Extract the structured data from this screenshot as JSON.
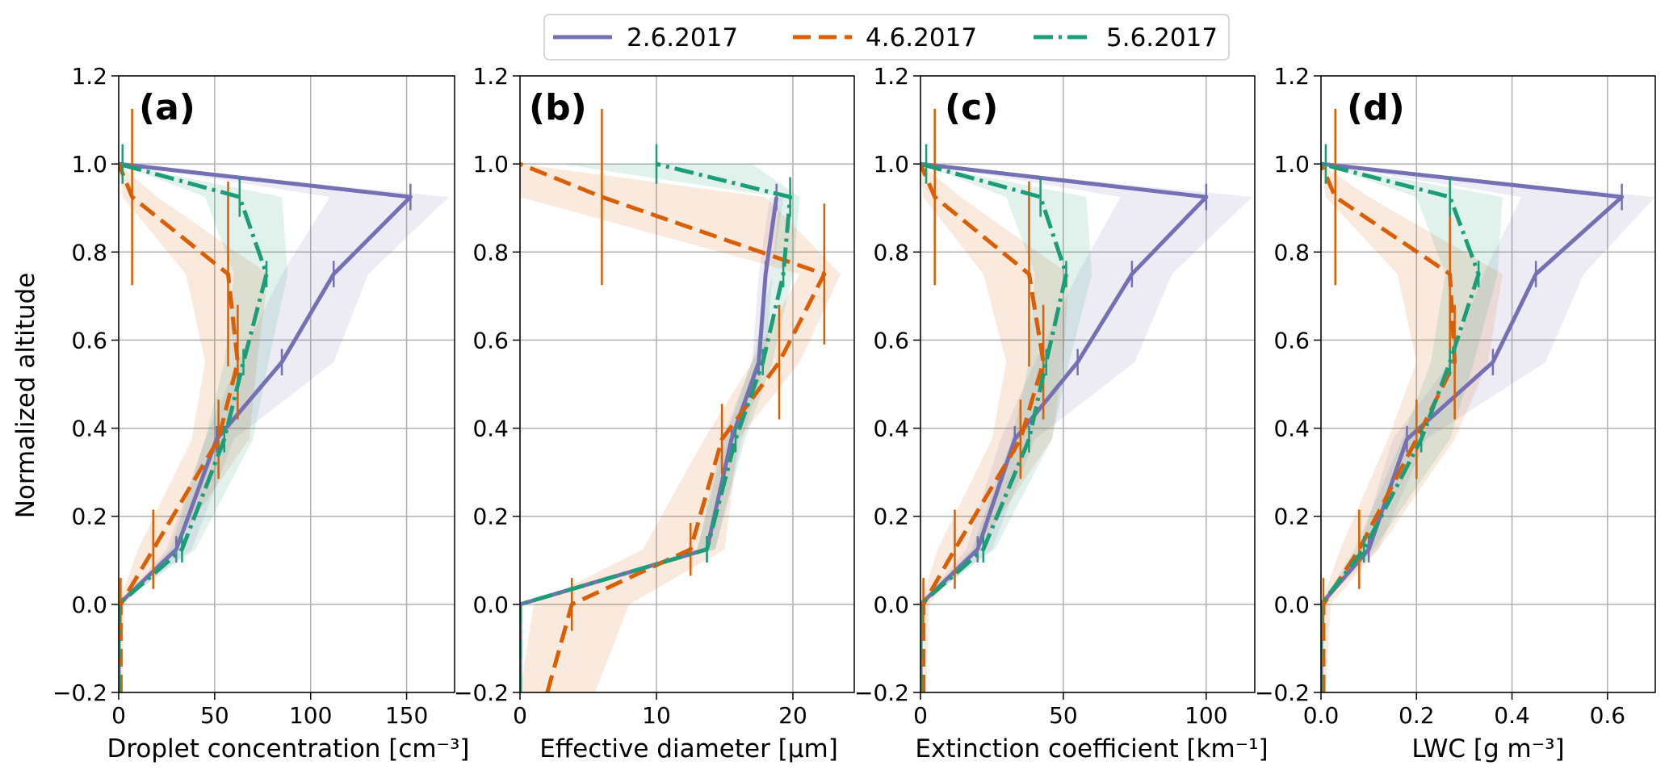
{
  "figure": {
    "ylabel": "Normalized altitude"
  },
  "legend": {
    "placement": "top-center",
    "items": [
      {
        "key": "s1",
        "label": "2.6.2017"
      },
      {
        "key": "s2",
        "label": "4.6.2017"
      },
      {
        "key": "s3",
        "label": "5.6.2017"
      }
    ]
  },
  "styles": {
    "s1": {
      "color": "#7570b3",
      "dash": ""
    },
    "s2": {
      "color": "#d95f02",
      "dash": "22,10"
    },
    "s3": {
      "color": "#1b9e77",
      "dash": "24,7,4,7"
    }
  },
  "chart_data": [
    {
      "type": "line",
      "panel": "(a)",
      "xlabel": "Droplet concentration [cm⁻³]",
      "xlim": [
        0,
        175
      ],
      "ylim": [
        -0.2,
        1.2
      ],
      "xticks": [
        0,
        50,
        100,
        150
      ],
      "yticks": [
        -0.2,
        0.0,
        0.2,
        0.4,
        0.6,
        0.8,
        1.0,
        1.2
      ],
      "grid": true,
      "series": [
        {
          "key": "s1",
          "points": [
            [
              0,
              -0.2
            ],
            [
              0,
              0.0
            ],
            [
              30,
              0.125
            ],
            [
              51,
              0.375
            ],
            [
              85,
              0.55
            ],
            [
              112,
              0.75
            ],
            [
              152,
              0.925
            ],
            [
              0,
              1.0
            ]
          ],
          "band_low": [
            0,
            0,
            25,
            45,
            62,
            85,
            110,
            0
          ],
          "band_high": [
            0,
            0,
            38,
            60,
            112,
            130,
            172,
            0
          ],
          "err": [
            [
              30,
              0.125,
              0.03
            ],
            [
              51,
              0.375,
              0.03
            ],
            [
              85,
              0.55,
              0.03
            ],
            [
              112,
              0.75,
              0.03
            ],
            [
              152,
              0.925,
              0.03
            ]
          ]
        },
        {
          "key": "s2",
          "points": [
            [
              1,
              -0.2
            ],
            [
              1,
              0.0
            ],
            [
              18,
              0.125
            ],
            [
              52,
              0.375
            ],
            [
              62,
              0.55
            ],
            [
              57,
              0.75
            ],
            [
              7,
              0.925
            ],
            [
              0,
              1.0
            ]
          ],
          "band_low": [
            0,
            0,
            10,
            38,
            45,
            35,
            2,
            0
          ],
          "band_high": [
            2,
            3,
            28,
            68,
            72,
            78,
            20,
            0
          ],
          "err": [
            [
              1,
              0.0,
              0.06
            ],
            [
              18,
              0.125,
              0.09
            ],
            [
              52,
              0.375,
              0.09
            ],
            [
              62,
              0.55,
              0.13
            ],
            [
              57,
              0.75,
              0.21
            ],
            [
              7,
              0.925,
              0.2
            ]
          ]
        },
        {
          "key": "s3",
          "points": [
            [
              0,
              -0.2
            ],
            [
              0,
              0.0
            ],
            [
              33,
              0.125
            ],
            [
              55,
              0.375
            ],
            [
              65,
              0.55
            ],
            [
              77,
              0.75
            ],
            [
              63,
              0.925
            ],
            [
              0,
              1.0
            ]
          ],
          "band_low": [
            0,
            0,
            27,
            45,
            55,
            60,
            45,
            0
          ],
          "band_high": [
            0,
            0,
            40,
            70,
            78,
            88,
            85,
            0
          ],
          "err": [
            [
              33,
              0.125,
              0.03
            ],
            [
              55,
              0.375,
              0.03
            ],
            [
              65,
              0.55,
              0.03
            ],
            [
              77,
              0.75,
              0.03
            ],
            [
              63,
              0.925,
              0.045
            ],
            [
              2,
              1.0,
              0.045
            ]
          ]
        }
      ]
    },
    {
      "type": "line",
      "panel": "(b)",
      "xlabel": "Effective diameter [μm]",
      "xlim": [
        0,
        24.5
      ],
      "ylim": [
        -0.2,
        1.2
      ],
      "xticks": [
        0,
        10,
        20
      ],
      "yticks": [
        -0.2,
        0.0,
        0.2,
        0.4,
        0.6,
        0.8,
        1.0,
        1.2
      ],
      "grid": true,
      "series": [
        {
          "key": "s1",
          "points": [
            [
              0,
              -0.2
            ],
            [
              0,
              0.0
            ],
            [
              13.7,
              0.125
            ],
            [
              15.5,
              0.375
            ],
            [
              17.5,
              0.55
            ],
            [
              18,
              0.75
            ],
            [
              18.8,
              0.925
            ]
          ],
          "band_low": [
            0,
            0,
            13,
            14.8,
            17,
            17.5,
            18.3
          ],
          "band_high": [
            0,
            0,
            14.3,
            16.3,
            18,
            18.5,
            19.3
          ],
          "err": [
            [
              13.7,
              0.125,
              0.03
            ],
            [
              15.5,
              0.375,
              0.03
            ],
            [
              17.5,
              0.55,
              0.03
            ],
            [
              18,
              0.75,
              0.03
            ],
            [
              18.8,
              0.925,
              0.03
            ]
          ]
        },
        {
          "key": "s2",
          "points": [
            [
              2,
              -0.2
            ],
            [
              3.8,
              0.0
            ],
            [
              12.5,
              0.125
            ],
            [
              14.8,
              0.375
            ],
            [
              19,
              0.55
            ],
            [
              22.3,
              0.75
            ],
            [
              6,
              0.925
            ],
            [
              0,
              1.0
            ]
          ],
          "band_low": [
            0,
            1,
            9,
            13.5,
            17,
            20.5,
            0,
            0
          ],
          "band_high": [
            5.5,
            8,
            15,
            16,
            20.5,
            23.5,
            18,
            0
          ],
          "err": [
            [
              3.8,
              0.0,
              0.06
            ],
            [
              12.5,
              0.125,
              0.06
            ],
            [
              14.8,
              0.375,
              0.08
            ],
            [
              19,
              0.55,
              0.13
            ],
            [
              22.3,
              0.75,
              0.16
            ],
            [
              6,
              0.925,
              0.2
            ]
          ]
        },
        {
          "key": "s3",
          "points": [
            [
              0,
              -0.2
            ],
            [
              0,
              0.0
            ],
            [
              13.7,
              0.125
            ],
            [
              15.8,
              0.375
            ],
            [
              17.8,
              0.55
            ],
            [
              19.3,
              0.75
            ],
            [
              19.8,
              0.925
            ],
            [
              10,
              1.0
            ]
          ],
          "band_low": [
            0,
            0,
            13,
            15,
            17,
            18.5,
            19,
            3
          ],
          "band_high": [
            0,
            0,
            14.3,
            16.5,
            18.5,
            20,
            20.5,
            17
          ],
          "err": [
            [
              13.7,
              0.125,
              0.03
            ],
            [
              15.8,
              0.375,
              0.03
            ],
            [
              17.8,
              0.55,
              0.03
            ],
            [
              19.3,
              0.75,
              0.03
            ],
            [
              19.8,
              0.925,
              0.045
            ],
            [
              10,
              1.0,
              0.045
            ]
          ]
        }
      ]
    },
    {
      "type": "line",
      "panel": "(c)",
      "xlabel": "Extinction coefficient [km⁻¹]",
      "xlim": [
        0,
        117
      ],
      "ylim": [
        -0.2,
        1.2
      ],
      "xticks": [
        0,
        50,
        100
      ],
      "yticks": [
        -0.2,
        0.0,
        0.2,
        0.4,
        0.6,
        0.8,
        1.0,
        1.2
      ],
      "grid": true,
      "series": [
        {
          "key": "s1",
          "points": [
            [
              0,
              -0.2
            ],
            [
              0,
              0.0
            ],
            [
              20,
              0.125
            ],
            [
              33,
              0.375
            ],
            [
              55,
              0.55
            ],
            [
              74,
              0.75
            ],
            [
              100,
              0.925
            ],
            [
              0,
              1.0
            ]
          ],
          "band_low": [
            0,
            0,
            16,
            28,
            40,
            55,
            70,
            0
          ],
          "band_high": [
            0,
            0,
            25,
            40,
            75,
            88,
            116,
            0
          ],
          "err": [
            [
              20,
              0.125,
              0.03
            ],
            [
              33,
              0.375,
              0.03
            ],
            [
              55,
              0.55,
              0.03
            ],
            [
              74,
              0.75,
              0.03
            ],
            [
              100,
              0.925,
              0.03
            ]
          ]
        },
        {
          "key": "s2",
          "points": [
            [
              1,
              -0.2
            ],
            [
              1,
              0.0
            ],
            [
              12,
              0.125
            ],
            [
              35,
              0.375
            ],
            [
              43,
              0.55
            ],
            [
              38,
              0.75
            ],
            [
              5,
              0.925
            ],
            [
              0,
              1.0
            ]
          ],
          "band_low": [
            0,
            0,
            6,
            25,
            30,
            22,
            1,
            0
          ],
          "band_high": [
            2,
            3,
            20,
            46,
            50,
            52,
            14,
            0
          ],
          "err": [
            [
              1,
              0.0,
              0.06
            ],
            [
              12,
              0.125,
              0.09
            ],
            [
              35,
              0.375,
              0.09
            ],
            [
              43,
              0.55,
              0.13
            ],
            [
              38,
              0.75,
              0.21
            ],
            [
              5,
              0.925,
              0.2
            ]
          ]
        },
        {
          "key": "s3",
          "points": [
            [
              0,
              -0.2
            ],
            [
              0,
              0.0
            ],
            [
              22,
              0.125
            ],
            [
              38,
              0.375
            ],
            [
              44,
              0.55
            ],
            [
              51,
              0.75
            ],
            [
              42,
              0.925
            ],
            [
              0,
              1.0
            ]
          ],
          "band_low": [
            0,
            0,
            18,
            32,
            38,
            40,
            30,
            0
          ],
          "band_high": [
            0,
            0,
            26,
            46,
            52,
            60,
            58,
            0
          ],
          "err": [
            [
              22,
              0.125,
              0.03
            ],
            [
              38,
              0.375,
              0.03
            ],
            [
              44,
              0.55,
              0.03
            ],
            [
              51,
              0.75,
              0.03
            ],
            [
              42,
              0.925,
              0.045
            ],
            [
              2,
              1.0,
              0.045
            ]
          ]
        }
      ]
    },
    {
      "type": "line",
      "panel": "(d)",
      "xlabel": "LWC [g m⁻³]",
      "xlim": [
        0,
        0.7
      ],
      "ylim": [
        -0.2,
        1.2
      ],
      "xticks": [
        0.0,
        0.2,
        0.4,
        0.6
      ],
      "yticks": [
        -0.2,
        0.0,
        0.2,
        0.4,
        0.6,
        0.8,
        1.0,
        1.2
      ],
      "grid": true,
      "series": [
        {
          "key": "s1",
          "points": [
            [
              0,
              -0.2
            ],
            [
              0,
              0.0
            ],
            [
              0.1,
              0.125
            ],
            [
              0.18,
              0.375
            ],
            [
              0.36,
              0.55
            ],
            [
              0.45,
              0.75
            ],
            [
              0.63,
              0.925
            ],
            [
              0,
              1.0
            ]
          ],
          "band_low": [
            0,
            0,
            0.08,
            0.15,
            0.27,
            0.34,
            0.42,
            0
          ],
          "band_high": [
            0,
            0,
            0.12,
            0.22,
            0.47,
            0.55,
            0.7,
            0
          ],
          "err": [
            [
              0.1,
              0.125,
              0.03
            ],
            [
              0.18,
              0.375,
              0.03
            ],
            [
              0.36,
              0.55,
              0.03
            ],
            [
              0.45,
              0.75,
              0.03
            ],
            [
              0.63,
              0.925,
              0.03
            ]
          ]
        },
        {
          "key": "s2",
          "points": [
            [
              0.005,
              -0.2
            ],
            [
              0.005,
              0.0
            ],
            [
              0.08,
              0.125
            ],
            [
              0.2,
              0.375
            ],
            [
              0.28,
              0.55
            ],
            [
              0.27,
              0.75
            ],
            [
              0.03,
              0.925
            ],
            [
              0,
              1.0
            ]
          ],
          "band_low": [
            0,
            0,
            0.04,
            0.14,
            0.2,
            0.16,
            0.01,
            0
          ],
          "band_high": [
            0.01,
            0.02,
            0.12,
            0.28,
            0.35,
            0.38,
            0.1,
            0
          ],
          "err": [
            [
              0.005,
              0.0,
              0.06
            ],
            [
              0.08,
              0.125,
              0.09
            ],
            [
              0.2,
              0.375,
              0.09
            ],
            [
              0.28,
              0.55,
              0.13
            ],
            [
              0.27,
              0.75,
              0.21
            ],
            [
              0.03,
              0.925,
              0.2
            ]
          ]
        },
        {
          "key": "s3",
          "points": [
            [
              0,
              -0.2
            ],
            [
              0,
              0.0
            ],
            [
              0.09,
              0.125
            ],
            [
              0.21,
              0.375
            ],
            [
              0.27,
              0.55
            ],
            [
              0.33,
              0.75
            ],
            [
              0.27,
              0.925
            ],
            [
              0,
              1.0
            ]
          ],
          "band_low": [
            0,
            0,
            0.07,
            0.17,
            0.23,
            0.26,
            0.2,
            0
          ],
          "band_high": [
            0,
            0,
            0.11,
            0.27,
            0.32,
            0.37,
            0.38,
            0
          ],
          "err": [
            [
              0.09,
              0.125,
              0.03
            ],
            [
              0.21,
              0.375,
              0.03
            ],
            [
              0.27,
              0.55,
              0.03
            ],
            [
              0.33,
              0.75,
              0.03
            ],
            [
              0.27,
              0.925,
              0.045
            ],
            [
              0.01,
              1.0,
              0.045
            ]
          ]
        }
      ]
    }
  ]
}
